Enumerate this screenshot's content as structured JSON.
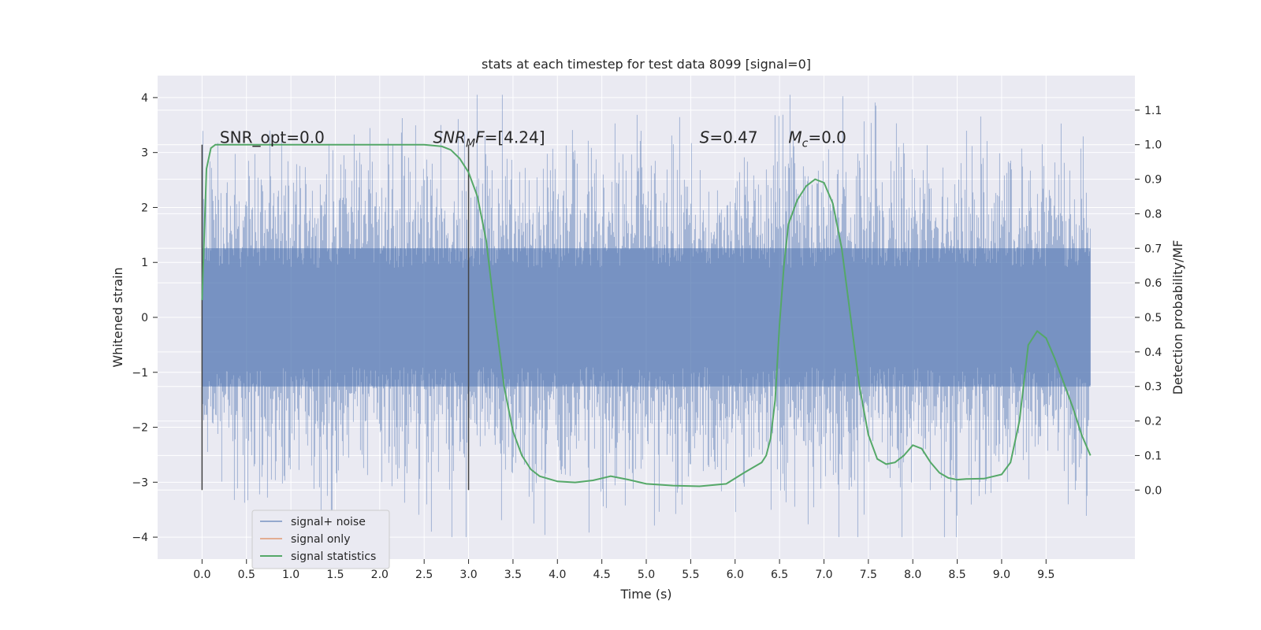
{
  "chart_data": {
    "type": "line",
    "title": "stats at each timestep for test data 8099 [signal=0]",
    "xlabel": "Time (s)",
    "ylabel_left": "Whitened strain",
    "ylabel_right": "Detection probability/MF",
    "xlim": [
      -0.5,
      10.5
    ],
    "ylim_left": [
      -4.4,
      4.4
    ],
    "ylim_right": [
      -0.2,
      1.2
    ],
    "xticks": [
      0.0,
      0.5,
      1.0,
      1.5,
      2.0,
      2.5,
      3.0,
      3.5,
      4.0,
      4.5,
      5.0,
      5.5,
      6.0,
      6.5,
      7.0,
      7.5,
      8.0,
      8.5,
      9.0,
      9.5
    ],
    "xtick_labels": [
      "0.0",
      "0.5",
      "1.0",
      "1.5",
      "2.0",
      "2.5",
      "3.0",
      "3.5",
      "4.0",
      "4.5",
      "5.0",
      "5.5",
      "6.0",
      "6.5",
      "7.0",
      "7.5",
      "8.0",
      "8.5",
      "9.0",
      "9.5"
    ],
    "yticks_left": [
      -4,
      -3,
      -2,
      -1,
      0,
      1,
      2,
      3,
      4
    ],
    "ytick_labels_left": [
      "−4",
      "−3",
      "−2",
      "−1",
      "0",
      "1",
      "2",
      "3",
      "4"
    ],
    "yticks_right": [
      0.0,
      0.1,
      0.2,
      0.3,
      0.4,
      0.5,
      0.6,
      0.7,
      0.8,
      0.9,
      1.0,
      1.1
    ],
    "ytick_labels_right": [
      "0.0",
      "0.1",
      "0.2",
      "0.3",
      "0.4",
      "0.5",
      "0.6",
      "0.7",
      "0.8",
      "0.9",
      "1.0",
      "1.1"
    ],
    "grid": true,
    "legend_position": "lower-left",
    "series": [
      {
        "name": "signal+ noise",
        "axis": "left",
        "color": "#4c72b0",
        "x_range": [
          0.0,
          10.0
        ],
        "envelope_typical": [
          -1.8,
          1.8
        ],
        "envelope_extreme": [
          -4.0,
          4.05
        ]
      },
      {
        "name": "signal only",
        "axis": "left",
        "color": "#dd8452",
        "x": [],
        "y": []
      },
      {
        "name": "signal statistics",
        "axis": "right",
        "color": "#55a868",
        "x": [
          0.0,
          0.05,
          0.1,
          0.15,
          0.2,
          0.4,
          0.6,
          1.0,
          1.5,
          2.0,
          2.5,
          2.7,
          2.8,
          2.9,
          3.0,
          3.1,
          3.2,
          3.3,
          3.4,
          3.5,
          3.6,
          3.7,
          3.8,
          4.0,
          4.2,
          4.4,
          4.6,
          4.8,
          5.0,
          5.3,
          5.6,
          5.9,
          6.1,
          6.2,
          6.3,
          6.35,
          6.4,
          6.45,
          6.5,
          6.55,
          6.6,
          6.7,
          6.8,
          6.9,
          7.0,
          7.1,
          7.2,
          7.3,
          7.4,
          7.5,
          7.6,
          7.7,
          7.8,
          7.9,
          8.0,
          8.1,
          8.2,
          8.3,
          8.4,
          8.5,
          8.6,
          8.8,
          9.0,
          9.1,
          9.2,
          9.3,
          9.4,
          9.5,
          9.6,
          9.7,
          9.8,
          9.9,
          10.0
        ],
        "y": [
          0.55,
          0.93,
          0.99,
          1.0,
          1.0,
          1.0,
          1.0,
          1.0,
          1.0,
          1.0,
          1.0,
          0.995,
          0.985,
          0.96,
          0.92,
          0.85,
          0.72,
          0.5,
          0.3,
          0.17,
          0.1,
          0.06,
          0.04,
          0.025,
          0.022,
          0.028,
          0.04,
          0.03,
          0.018,
          0.013,
          0.011,
          0.018,
          0.05,
          0.065,
          0.08,
          0.1,
          0.15,
          0.26,
          0.48,
          0.65,
          0.77,
          0.84,
          0.88,
          0.9,
          0.89,
          0.83,
          0.7,
          0.5,
          0.3,
          0.16,
          0.09,
          0.075,
          0.08,
          0.1,
          0.13,
          0.12,
          0.08,
          0.05,
          0.035,
          0.03,
          0.032,
          0.033,
          0.045,
          0.08,
          0.2,
          0.42,
          0.46,
          0.44,
          0.38,
          0.31,
          0.24,
          0.16,
          0.1
        ]
      }
    ],
    "vertical_lines": [
      {
        "x": 0.0,
        "y_range_right": [
          0.0,
          1.0
        ]
      },
      {
        "x": 3.0,
        "y_range_right": [
          0.0,
          1.0
        ]
      }
    ],
    "annotations": [
      {
        "id": "snr_opt",
        "text": "SNR_opt=0.0",
        "x": 0.2,
        "y_right": 1.0
      },
      {
        "id": "snr_mf",
        "italic": "SNR",
        "subscript": "M",
        "italic2": "F",
        "rest": "=[4.24]",
        "x": 2.6,
        "y_right": 1.0
      },
      {
        "id": "s",
        "italic": "S",
        "rest": "=0.47",
        "x": 5.6,
        "y_right": 1.0
      },
      {
        "id": "mc",
        "italic": "M",
        "subscript": "c",
        "rest": "=0.0",
        "x": 6.6,
        "y_right": 1.0
      }
    ],
    "colors": {
      "plot_bg": "#eaeaf2",
      "grid": "#ffffff",
      "strain": "#4c72b0",
      "stats": "#55a868",
      "signal_only": "#dd8452",
      "vline": "#444444",
      "text": "#262626"
    }
  }
}
